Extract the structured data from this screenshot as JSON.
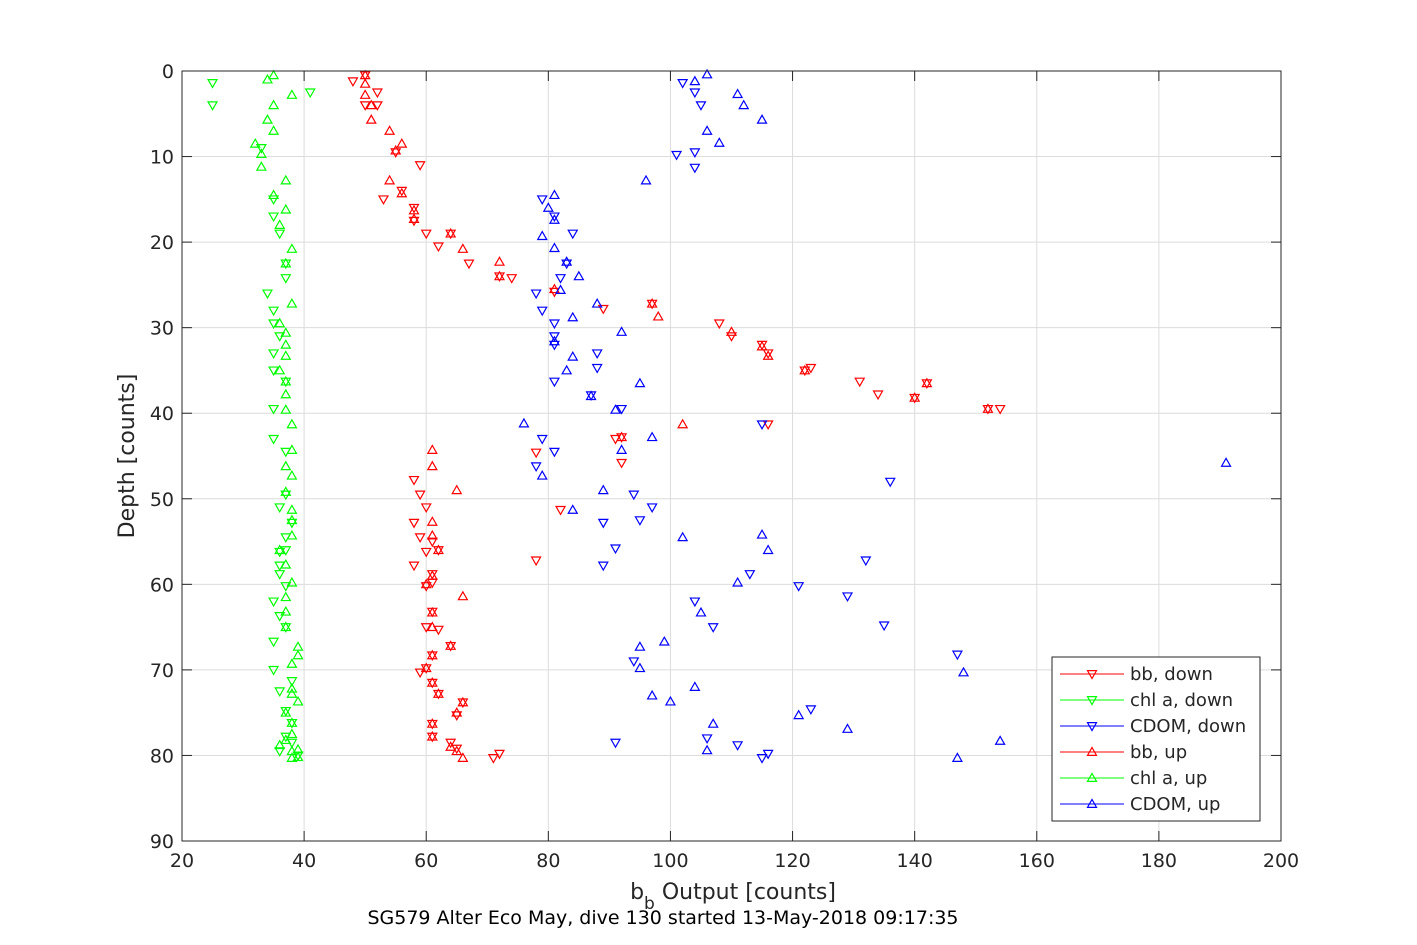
{
  "chart_data": {
    "type": "scatter",
    "title": "",
    "xlabel": "b_b Output [counts]",
    "xlabel_main": "b",
    "xlabel_sub": "b",
    "xlabel_rest": " Output [counts]",
    "ylabel": "Depth [counts]",
    "caption": "SG579 Alter Eco May, dive 130 started 13-May-2018 09:17:35",
    "xlim": [
      20,
      200
    ],
    "ylim": [
      0,
      90
    ],
    "y_reversed": true,
    "grid": true,
    "legend_placement": "bottom-right",
    "x_ticks": [
      "20",
      "40",
      "60",
      "80",
      "100",
      "120",
      "140",
      "160",
      "180",
      "200"
    ],
    "y_ticks": [
      "0",
      "10",
      "20",
      "30",
      "40",
      "50",
      "60",
      "70",
      "80",
      "90"
    ],
    "series": [
      {
        "name": "bb, down",
        "color": "#ff0000",
        "marker": "triangle-down",
        "points": [
          [
            48,
            1.2
          ],
          [
            50,
            0.5
          ],
          [
            52,
            2.5
          ],
          [
            52,
            4
          ],
          [
            50,
            4
          ],
          [
            55,
            9.5
          ],
          [
            59,
            11
          ],
          [
            56,
            14
          ],
          [
            53,
            15
          ],
          [
            58,
            16
          ],
          [
            58,
            17.5
          ],
          [
            60,
            19
          ],
          [
            62,
            20.5
          ],
          [
            64,
            19
          ],
          [
            67,
            22.5
          ],
          [
            72,
            24
          ],
          [
            74,
            24.2
          ],
          [
            81,
            25.8
          ],
          [
            89,
            27.8
          ],
          [
            97,
            27.2
          ],
          [
            108,
            29.5
          ],
          [
            110,
            31
          ],
          [
            115,
            32
          ],
          [
            116,
            33
          ],
          [
            122,
            35
          ],
          [
            123,
            34.7
          ],
          [
            131,
            36.3
          ],
          [
            134,
            37.8
          ],
          [
            140,
            38.2
          ],
          [
            142,
            36.5
          ],
          [
            152,
            39.5
          ],
          [
            154,
            39.5
          ],
          [
            116,
            41.3
          ],
          [
            92,
            42.8
          ],
          [
            91,
            43
          ],
          [
            78,
            44.6
          ],
          [
            92,
            45.8
          ],
          [
            58,
            47.8
          ],
          [
            59,
            49.5
          ],
          [
            60,
            51
          ],
          [
            82,
            51.3
          ],
          [
            58,
            52.8
          ],
          [
            59,
            54.5
          ],
          [
            61,
            55
          ],
          [
            60,
            56.2
          ],
          [
            62,
            56
          ],
          [
            78,
            57.2
          ],
          [
            58,
            57.8
          ],
          [
            61,
            58.8
          ],
          [
            60,
            60.2
          ],
          [
            61,
            59.8
          ],
          [
            61,
            63.2
          ],
          [
            60,
            65
          ],
          [
            62,
            65.3
          ],
          [
            61,
            68.3
          ],
          [
            59,
            70.3
          ],
          [
            60,
            69.8
          ],
          [
            61,
            71.5
          ],
          [
            62,
            72.8
          ],
          [
            64,
            67.2
          ],
          [
            66,
            73.8
          ],
          [
            65,
            75.3
          ],
          [
            61,
            76.3
          ],
          [
            61,
            77.8
          ],
          [
            64,
            78.5
          ],
          [
            65,
            79.2
          ],
          [
            72,
            79.8
          ],
          [
            71,
            80.3
          ]
        ]
      },
      {
        "name": "chl a, down",
        "color": "#00ff00",
        "marker": "triangle-down",
        "points": [
          [
            25,
            1.4
          ],
          [
            25,
            4
          ],
          [
            41,
            2.5
          ],
          [
            33,
            9
          ],
          [
            35,
            15
          ],
          [
            35,
            17
          ],
          [
            36,
            19
          ],
          [
            37,
            22.5
          ],
          [
            37,
            24.2
          ],
          [
            34,
            26
          ],
          [
            35,
            28
          ],
          [
            35,
            29.5
          ],
          [
            36,
            31
          ],
          [
            35,
            33
          ],
          [
            35,
            35
          ],
          [
            37,
            36.3
          ],
          [
            35,
            39.5
          ],
          [
            35,
            43
          ],
          [
            37,
            44.5
          ],
          [
            37,
            49.5
          ],
          [
            36,
            51
          ],
          [
            38,
            52.8
          ],
          [
            37,
            54.5
          ],
          [
            36,
            56.2
          ],
          [
            37,
            56
          ],
          [
            36,
            57.8
          ],
          [
            36,
            58.8
          ],
          [
            37,
            60.2
          ],
          [
            35,
            62
          ],
          [
            36,
            63.7
          ],
          [
            37,
            65
          ],
          [
            35,
            66.7
          ],
          [
            35,
            70
          ],
          [
            38,
            71.3
          ],
          [
            36,
            72.5
          ],
          [
            37,
            74.8
          ],
          [
            38,
            76.2
          ],
          [
            37,
            77.8
          ],
          [
            38,
            78.5
          ],
          [
            36,
            79.5
          ],
          [
            39,
            80
          ]
        ]
      },
      {
        "name": "CDOM, down",
        "color": "#0000ff",
        "marker": "triangle-down",
        "points": [
          [
            102,
            1.4
          ],
          [
            104,
            2.5
          ],
          [
            105,
            4
          ],
          [
            104,
            9.5
          ],
          [
            101,
            9.8
          ],
          [
            104,
            11.3
          ],
          [
            79,
            15
          ],
          [
            81,
            17
          ],
          [
            84,
            19
          ],
          [
            83,
            22.5
          ],
          [
            82,
            24.2
          ],
          [
            78,
            26
          ],
          [
            79,
            28
          ],
          [
            81,
            29.5
          ],
          [
            81,
            31
          ],
          [
            81,
            32
          ],
          [
            88,
            33
          ],
          [
            88,
            34.7
          ],
          [
            81,
            36.3
          ],
          [
            87,
            37.9
          ],
          [
            92,
            39.5
          ],
          [
            79,
            43
          ],
          [
            81,
            44.5
          ],
          [
            78,
            46.2
          ],
          [
            136,
            48
          ],
          [
            94,
            49.5
          ],
          [
            97,
            51
          ],
          [
            89,
            52.8
          ],
          [
            91,
            55.8
          ],
          [
            95,
            52.5
          ],
          [
            89,
            57.8
          ],
          [
            132,
            57.2
          ],
          [
            121,
            60.2
          ],
          [
            113,
            58.8
          ],
          [
            129,
            61.4
          ],
          [
            104,
            62
          ],
          [
            107,
            65
          ],
          [
            135,
            64.8
          ],
          [
            147,
            68.2
          ],
          [
            94,
            69
          ],
          [
            115,
            41.3
          ],
          [
            111,
            78.8
          ],
          [
            106,
            78
          ],
          [
            91,
            78.5
          ],
          [
            115,
            80.3
          ],
          [
            116,
            79.8
          ],
          [
            123,
            74.6
          ]
        ]
      },
      {
        "name": "bb, up",
        "color": "#ff0000",
        "marker": "triangle-up",
        "points": [
          [
            50,
            0.5
          ],
          [
            50,
            1.5
          ],
          [
            50,
            2.8
          ],
          [
            51,
            4
          ],
          [
            51,
            5.7
          ],
          [
            54,
            7
          ],
          [
            56,
            8.5
          ],
          [
            55,
            9.3
          ],
          [
            54,
            12.8
          ],
          [
            56,
            14.3
          ],
          [
            58,
            16.3
          ],
          [
            58,
            17.3
          ],
          [
            64,
            19
          ],
          [
            66,
            20.8
          ],
          [
            72,
            22.3
          ],
          [
            72,
            24
          ],
          [
            81,
            25.5
          ],
          [
            97,
            27.2
          ],
          [
            98,
            28.7
          ],
          [
            110,
            30.5
          ],
          [
            115,
            32.2
          ],
          [
            116,
            33.3
          ],
          [
            122,
            35
          ],
          [
            142,
            36.5
          ],
          [
            140,
            38.2
          ],
          [
            152,
            39.5
          ],
          [
            102,
            41.3
          ],
          [
            92,
            42.8
          ],
          [
            61,
            44.3
          ],
          [
            61,
            46.2
          ],
          [
            65,
            49
          ],
          [
            61,
            52.7
          ],
          [
            61,
            54.3
          ],
          [
            62,
            56
          ],
          [
            61,
            59
          ],
          [
            60,
            60
          ],
          [
            66,
            61.4
          ],
          [
            61,
            63.3
          ],
          [
            61,
            65
          ],
          [
            64,
            67.2
          ],
          [
            61,
            68.3
          ],
          [
            60,
            69.8
          ],
          [
            61,
            71.5
          ],
          [
            62,
            72.8
          ],
          [
            66,
            73.8
          ],
          [
            65,
            75
          ],
          [
            61,
            76.3
          ],
          [
            61,
            77.8
          ],
          [
            64,
            79
          ],
          [
            65,
            79.5
          ],
          [
            66,
            80.3
          ]
        ]
      },
      {
        "name": "chl a, up",
        "color": "#00ff00",
        "marker": "triangle-up",
        "points": [
          [
            35,
            0.5
          ],
          [
            34,
            1
          ],
          [
            38,
            2.8
          ],
          [
            35,
            4
          ],
          [
            34,
            5.7
          ],
          [
            35,
            7
          ],
          [
            32,
            8.5
          ],
          [
            33,
            9.7
          ],
          [
            33,
            11.2
          ],
          [
            37,
            12.8
          ],
          [
            35,
            14.5
          ],
          [
            37,
            16.2
          ],
          [
            36,
            18
          ],
          [
            38,
            20.8
          ],
          [
            37,
            22.5
          ],
          [
            38,
            27.2
          ],
          [
            36,
            29.5
          ],
          [
            37,
            30.6
          ],
          [
            37,
            32
          ],
          [
            37,
            33.3
          ],
          [
            36,
            35
          ],
          [
            37,
            36.3
          ],
          [
            37,
            37.8
          ],
          [
            37,
            39.6
          ],
          [
            38,
            41.3
          ],
          [
            38,
            44.3
          ],
          [
            37,
            46.2
          ],
          [
            38,
            47.3
          ],
          [
            37,
            49.2
          ],
          [
            38,
            51.3
          ],
          [
            38,
            52.5
          ],
          [
            38,
            54.3
          ],
          [
            36,
            56
          ],
          [
            37,
            57.7
          ],
          [
            38,
            59.8
          ],
          [
            37,
            61.5
          ],
          [
            37,
            63.2
          ],
          [
            37,
            65
          ],
          [
            39,
            67.3
          ],
          [
            39,
            68.3
          ],
          [
            38,
            69.3
          ],
          [
            38,
            72.2
          ],
          [
            38,
            72.8
          ],
          [
            39,
            73.7
          ],
          [
            37,
            75
          ],
          [
            38,
            76.2
          ],
          [
            38,
            77.5
          ],
          [
            37,
            78.2
          ],
          [
            36,
            78.8
          ],
          [
            38,
            79.5
          ],
          [
            39,
            79.3
          ],
          [
            38,
            80.3
          ],
          [
            39,
            80.2
          ]
        ]
      },
      {
        "name": "CDOM, up",
        "color": "#0000ff",
        "marker": "triangle-up",
        "points": [
          [
            106,
            0.4
          ],
          [
            104,
            1.2
          ],
          [
            111,
            2.7
          ],
          [
            112,
            4
          ],
          [
            115,
            5.7
          ],
          [
            106,
            7
          ],
          [
            108,
            8.4
          ],
          [
            96,
            12.8
          ],
          [
            81,
            14.5
          ],
          [
            80,
            16
          ],
          [
            81,
            17.4
          ],
          [
            79,
            19.3
          ],
          [
            81,
            20.7
          ],
          [
            83,
            22.3
          ],
          [
            85,
            24
          ],
          [
            82,
            25.6
          ],
          [
            88,
            27.2
          ],
          [
            84,
            28.8
          ],
          [
            92,
            30.5
          ],
          [
            81,
            31.6
          ],
          [
            84,
            33.4
          ],
          [
            83,
            35
          ],
          [
            95,
            36.5
          ],
          [
            87,
            38
          ],
          [
            91,
            39.6
          ],
          [
            76,
            41.2
          ],
          [
            97,
            42.8
          ],
          [
            92,
            44.3
          ],
          [
            191,
            45.8
          ],
          [
            79,
            47.3
          ],
          [
            89,
            49
          ],
          [
            84,
            51.3
          ],
          [
            102,
            54.5
          ],
          [
            115,
            54.2
          ],
          [
            116,
            56
          ],
          [
            111,
            59.8
          ],
          [
            105,
            63.3
          ],
          [
            99,
            66.7
          ],
          [
            95,
            67.3
          ],
          [
            95,
            69.8
          ],
          [
            148,
            70.3
          ],
          [
            97,
            73
          ],
          [
            100,
            73.7
          ],
          [
            104,
            72
          ],
          [
            121,
            75.3
          ],
          [
            107,
            76.3
          ],
          [
            129,
            76.9
          ],
          [
            154,
            78.3
          ],
          [
            106,
            79.4
          ],
          [
            147,
            80.3
          ]
        ]
      }
    ]
  }
}
